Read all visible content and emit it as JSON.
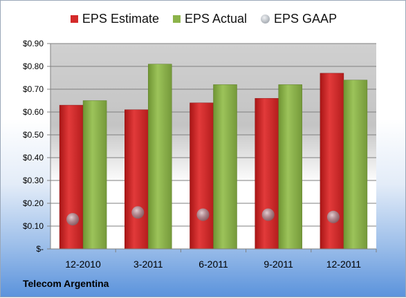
{
  "chart_data": {
    "type": "bar",
    "title": "",
    "xlabel": "",
    "ylabel": "",
    "categories": [
      "12-2010",
      "3-2011",
      "6-2011",
      "9-2011",
      "12-2011"
    ],
    "series": [
      {
        "name": "EPS Estimate",
        "kind": "bar",
        "color": "#d42a2a",
        "values": [
          0.63,
          0.61,
          0.64,
          0.66,
          0.77
        ]
      },
      {
        "name": "EPS Actual",
        "kind": "bar",
        "color": "#8cb34a",
        "values": [
          0.65,
          0.81,
          0.72,
          0.72,
          0.74
        ]
      },
      {
        "name": "EPS GAAP",
        "kind": "marker",
        "color": "#b0b8c2",
        "values": [
          0.13,
          0.16,
          0.15,
          0.15,
          0.14
        ]
      }
    ],
    "ylim": [
      0,
      0.9
    ],
    "yticks": [
      0,
      0.1,
      0.2,
      0.3,
      0.4,
      0.5,
      0.6,
      0.7,
      0.8,
      0.9
    ],
    "ytick_labels": [
      "$-",
      "$0.10",
      "$0.20",
      "$0.30",
      "$0.40",
      "$0.50",
      "$0.60",
      "$0.70",
      "$0.80",
      "$0.90"
    ],
    "grid": true,
    "legend": "top"
  },
  "legend": [
    {
      "label": "EPS Estimate",
      "icon": "red-square",
      "color": "#d42a2a"
    },
    {
      "label": "EPS Actual",
      "icon": "green-square",
      "color": "#8cb34a"
    },
    {
      "label": "EPS GAAP",
      "icon": "gray-ball",
      "color": "#b0b8c2"
    }
  ],
  "footer": {
    "company": "Telecom Argentina"
  }
}
